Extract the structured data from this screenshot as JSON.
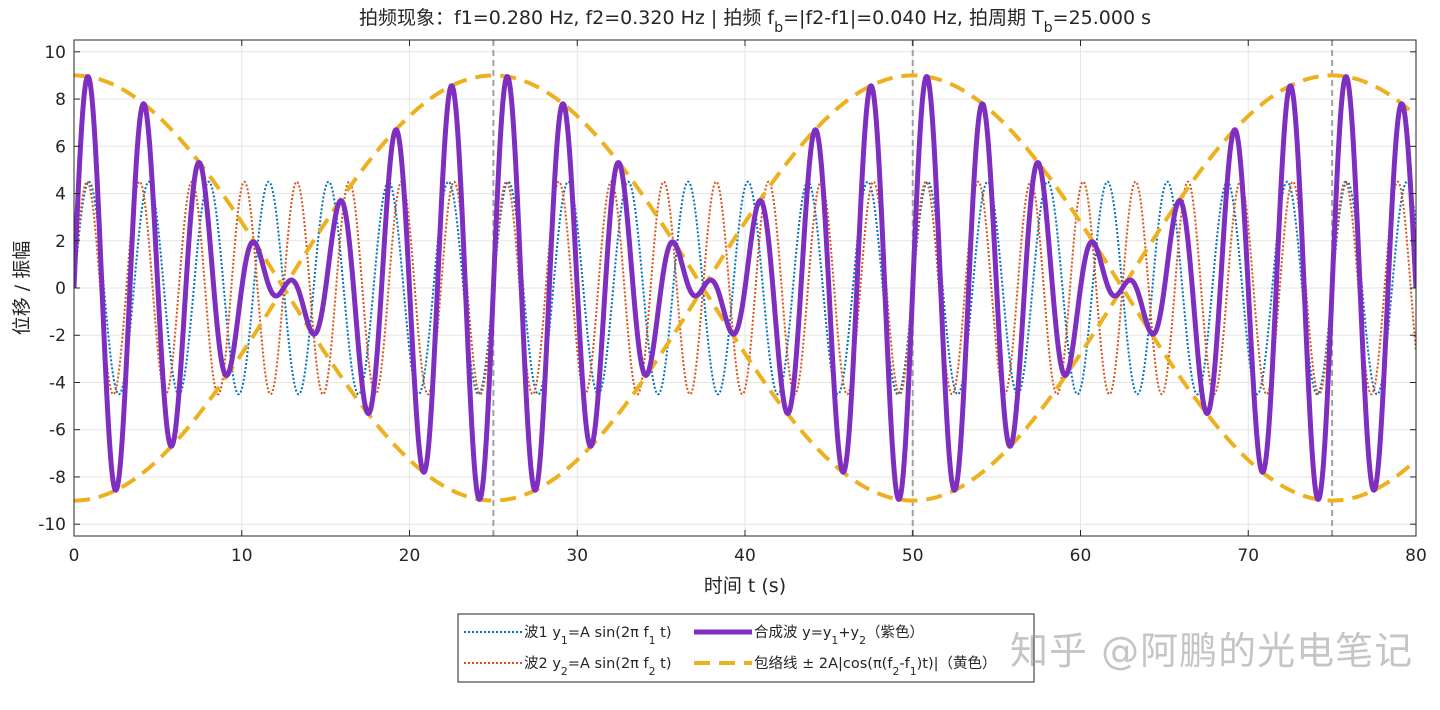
{
  "chart_data": {
    "type": "line",
    "title_parts": {
      "main": "拍频现象：f1=0.280 Hz, f2=0.320 Hz  |  拍频 f",
      "fb_sub": "b",
      "mid": "=|f2-f1|=0.040 Hz, 拍周期 T",
      "tb_sub": "b",
      "end": "=25.000 s"
    },
    "xlabel": "时间 t (s)",
    "ylabel": "位移 / 振幅",
    "xlim": [
      0,
      80
    ],
    "ylim": [
      -10.5,
      10.5
    ],
    "xticks": [
      0,
      10,
      20,
      30,
      40,
      50,
      60,
      70,
      80
    ],
    "yticks": [
      -10,
      -8,
      -6,
      -4,
      -2,
      0,
      2,
      4,
      6,
      8,
      10
    ],
    "grid": true,
    "parameters": {
      "A": 4.5,
      "f1": 0.28,
      "f2": 0.32,
      "fb": 0.04,
      "Tb": 25.0
    },
    "beat_period_markers": [
      25,
      50,
      75
    ],
    "series": [
      {
        "id": "wave1",
        "formula": "A*sin(2*pi*f1*t)",
        "color": "#0072BD",
        "style": "dotted"
      },
      {
        "id": "wave2",
        "formula": "A*sin(2*pi*f2*t)",
        "color": "#D95319",
        "style": "dotted"
      },
      {
        "id": "sum",
        "formula": "y1+y2",
        "color": "#7E2FBF",
        "style": "solid"
      },
      {
        "id": "envelope",
        "formula": "±2A|cos(pi*(f2-f1)*t)|",
        "color": "#EDB120",
        "style": "dashed"
      }
    ],
    "legend": {
      "position": "bottom-center",
      "entries": [
        {
          "series": "wave1",
          "label": "波1 y",
          "sub": "1",
          "rest": "=A sin(2π f",
          "sub2": "1",
          "end": " t)"
        },
        {
          "series": "sum",
          "label": "合成波 y=y",
          "sub": "1",
          "rest": "+y",
          "sub2": "2",
          "end": "（紫色）"
        },
        {
          "series": "wave2",
          "label": "波2 y",
          "sub": "2",
          "rest": "=A sin(2π f",
          "sub2": "2",
          "end": " t)"
        },
        {
          "series": "envelope",
          "label": "包络线 ± 2A|cos(π(f",
          "sub": "2",
          "rest": "-f",
          "sub2": "1",
          "end": ")t)|（黄色）"
        }
      ]
    },
    "colors": {
      "wave1": "#0072BD",
      "wave2": "#D95319",
      "sum": "#7E2FBF",
      "envelope": "#EDB120",
      "grid": "#e6e6e6",
      "marker": "#a0a0a0"
    }
  },
  "watermark": "知乎 @阿鹏的光电笔记"
}
